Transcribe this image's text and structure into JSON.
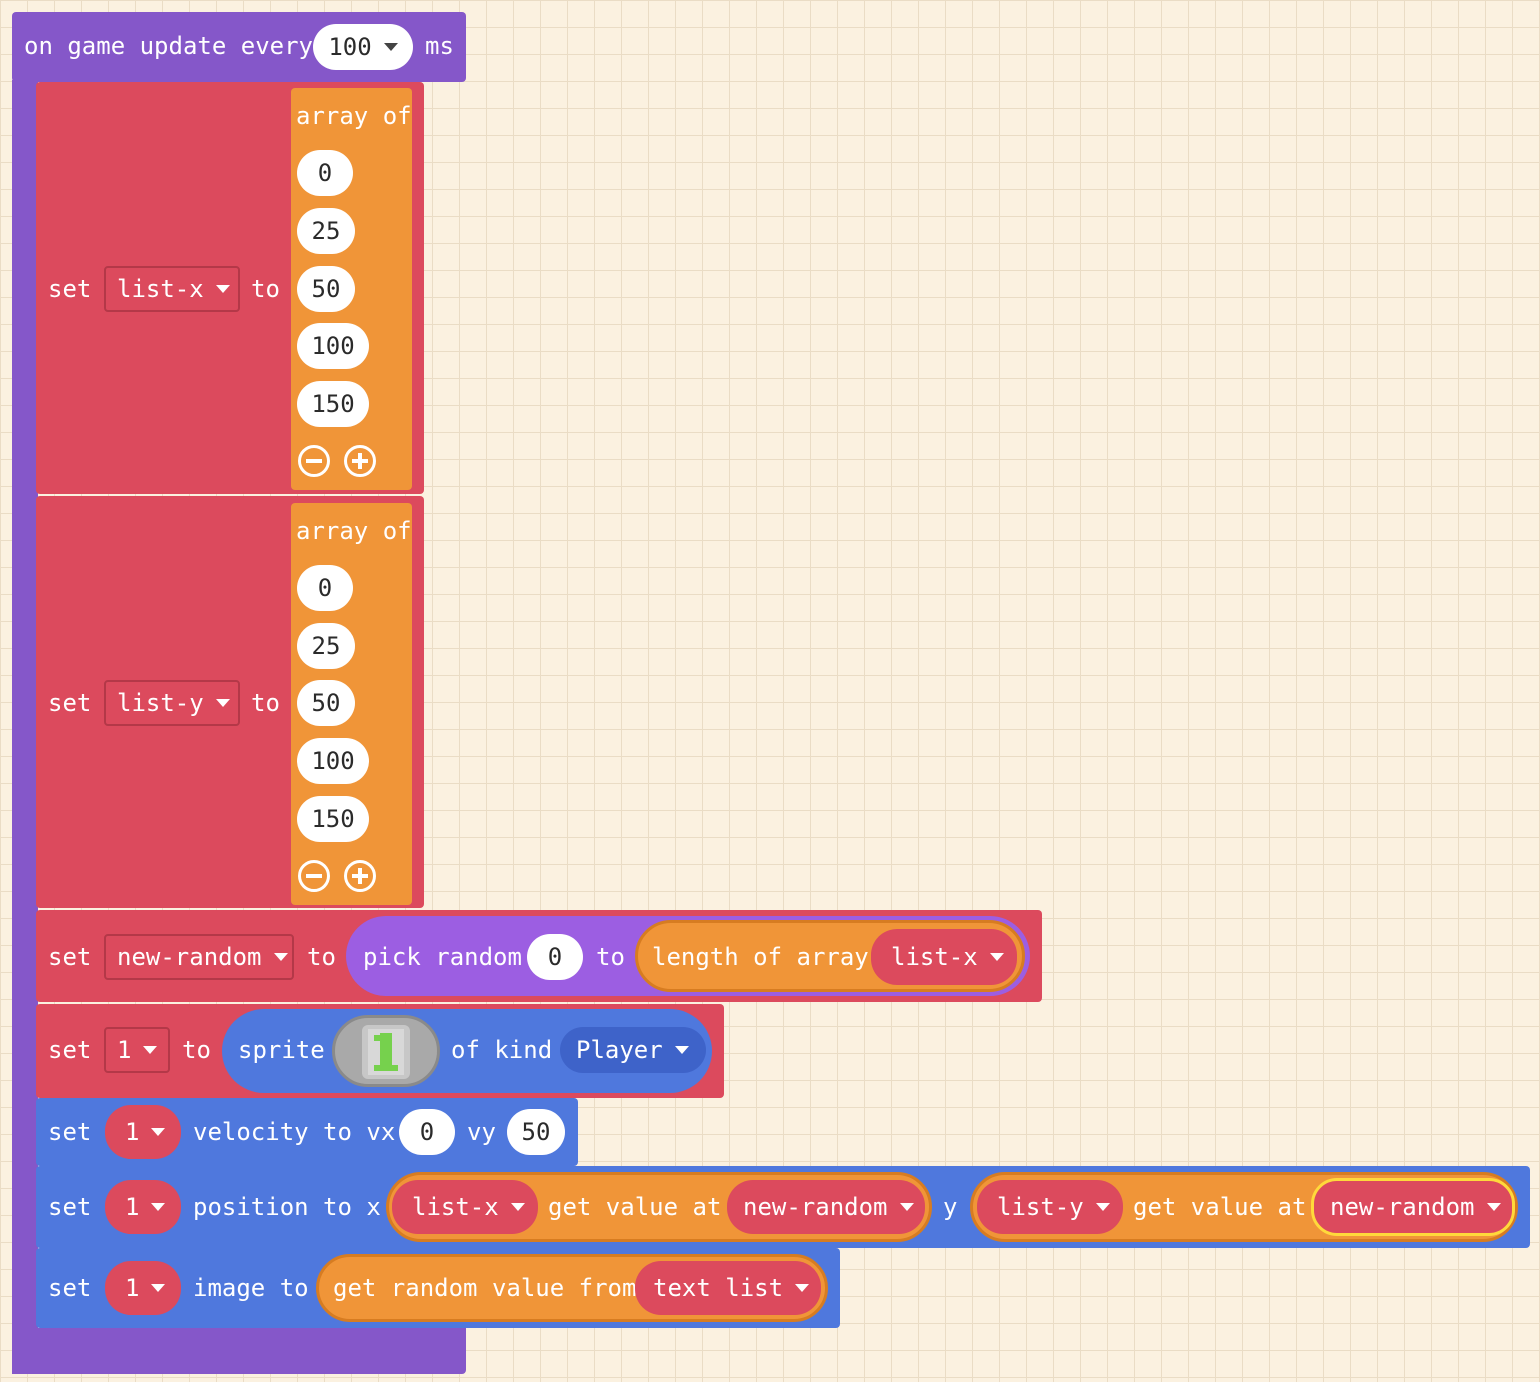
{
  "colors": {
    "event_purple": "#8557c9",
    "variables_red": "#dc4a5d",
    "arrays_orange": "#f09538",
    "sprites_blue": "#4f78dd",
    "math_lavender": "#9c5ee2",
    "canvas_bg": "#fbf1e0"
  },
  "event": {
    "prefix": "on game update every",
    "interval": "100",
    "unit": "ms"
  },
  "set_list_x": {
    "set": "set",
    "var": "list-x",
    "to": "to",
    "array_label": "array of",
    "values": [
      "0",
      "25",
      "50",
      "100",
      "150"
    ]
  },
  "set_list_y": {
    "set": "set",
    "var": "list-y",
    "to": "to",
    "array_label": "array of",
    "values": [
      "0",
      "25",
      "50",
      "100",
      "150"
    ]
  },
  "set_new_random": {
    "set": "set",
    "var": "new-random",
    "to": "to",
    "pick_random": "pick random",
    "min": "0",
    "to2": "to",
    "length_of_array": "length of array",
    "array_var": "list-x"
  },
  "set_sprite": {
    "set": "set",
    "var": "1",
    "to": "to",
    "sprite": "sprite",
    "of_kind": "of kind",
    "kind": "Player"
  },
  "set_velocity": {
    "set": "set",
    "var": "1",
    "label": "velocity to vx",
    "vx": "0",
    "vy_label": "vy",
    "vy": "50"
  },
  "set_position": {
    "set": "set",
    "var": "1",
    "label": "position to x",
    "x_list": "list-x",
    "get_value_at": "get value at",
    "x_index": "new-random",
    "y_label": "y",
    "y_list": "list-y",
    "get_value_at2": "get value at",
    "y_index": "new-random"
  },
  "set_image": {
    "set": "set",
    "var": "1",
    "label": "image to",
    "get_random": "get random value from",
    "list_var": "text list"
  }
}
